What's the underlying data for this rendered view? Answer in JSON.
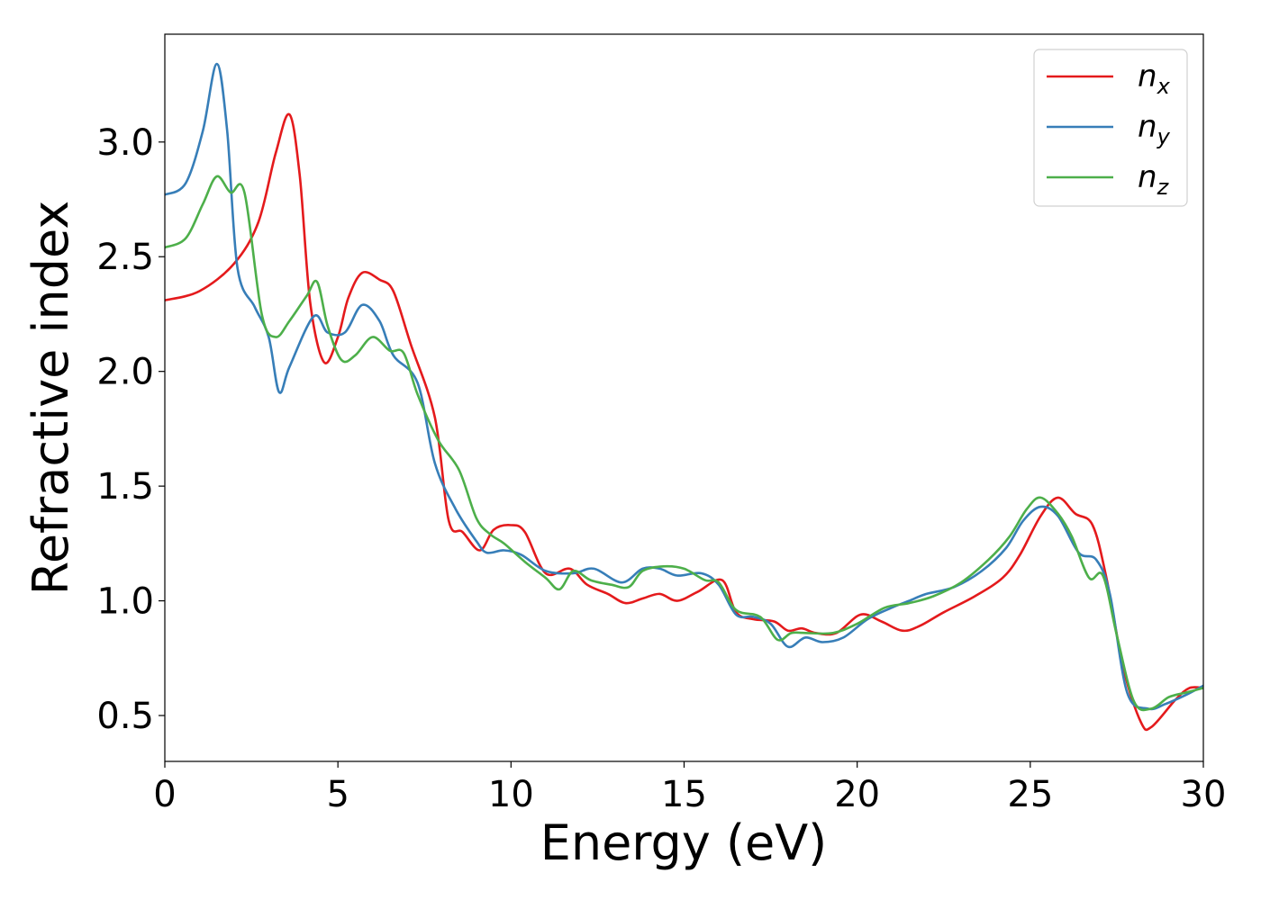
{
  "chart_data": {
    "type": "line",
    "xlabel": "Energy (eV)",
    "ylabel": "Refractive index",
    "xlim": [
      0,
      30
    ],
    "ylim": [
      0.3,
      3.47
    ],
    "x_ticks": [
      0,
      5,
      10,
      15,
      20,
      25,
      30
    ],
    "y_ticks": [
      0.5,
      1.0,
      1.5,
      2.0,
      2.5,
      3.0
    ],
    "x_tick_labels": [
      "0",
      "5",
      "10",
      "15",
      "20",
      "25",
      "30"
    ],
    "y_tick_labels": [
      "0.5",
      "1.0",
      "1.5",
      "2.0",
      "2.5",
      "3.0"
    ],
    "grid": false,
    "legend_position": "top-right",
    "series": [
      {
        "name": "n_x",
        "label_base": "n",
        "label_sub": "x",
        "color": "#e41a1c",
        "points": [
          [
            0,
            2.31
          ],
          [
            1,
            2.35
          ],
          [
            2,
            2.47
          ],
          [
            2.7,
            2.65
          ],
          [
            3.2,
            2.95
          ],
          [
            3.6,
            3.12
          ],
          [
            3.9,
            2.85
          ],
          [
            4.2,
            2.3
          ],
          [
            4.6,
            2.04
          ],
          [
            5,
            2.15
          ],
          [
            5.3,
            2.32
          ],
          [
            5.7,
            2.43
          ],
          [
            6.2,
            2.4
          ],
          [
            6.6,
            2.35
          ],
          [
            7.1,
            2.12
          ],
          [
            7.8,
            1.8
          ],
          [
            8.2,
            1.35
          ],
          [
            8.6,
            1.3
          ],
          [
            9.1,
            1.22
          ],
          [
            9.5,
            1.31
          ],
          [
            10,
            1.33
          ],
          [
            10.4,
            1.3
          ],
          [
            11,
            1.12
          ],
          [
            11.7,
            1.14
          ],
          [
            12.2,
            1.07
          ],
          [
            12.8,
            1.03
          ],
          [
            13.3,
            0.99
          ],
          [
            13.8,
            1.01
          ],
          [
            14.3,
            1.03
          ],
          [
            14.8,
            1.0
          ],
          [
            15.4,
            1.04
          ],
          [
            16.1,
            1.09
          ],
          [
            16.5,
            0.95
          ],
          [
            17,
            0.92
          ],
          [
            17.6,
            0.91
          ],
          [
            18,
            0.87
          ],
          [
            18.4,
            0.88
          ],
          [
            18.8,
            0.86
          ],
          [
            19.4,
            0.86
          ],
          [
            20.1,
            0.94
          ],
          [
            20.7,
            0.91
          ],
          [
            21.3,
            0.87
          ],
          [
            21.8,
            0.89
          ],
          [
            22.5,
            0.95
          ],
          [
            23.4,
            1.02
          ],
          [
            24.2,
            1.1
          ],
          [
            24.7,
            1.2
          ],
          [
            25.3,
            1.37
          ],
          [
            25.8,
            1.45
          ],
          [
            26.3,
            1.38
          ],
          [
            26.8,
            1.33
          ],
          [
            27.2,
            1.1
          ],
          [
            27.7,
            0.7
          ],
          [
            28.2,
            0.47
          ],
          [
            28.5,
            0.45
          ],
          [
            29.2,
            0.57
          ],
          [
            29.6,
            0.62
          ],
          [
            30,
            0.62
          ]
        ]
      },
      {
        "name": "n_y",
        "label_base": "n",
        "label_sub": "y",
        "color": "#377eb8",
        "points": [
          [
            0,
            2.77
          ],
          [
            0.6,
            2.82
          ],
          [
            1.1,
            3.05
          ],
          [
            1.5,
            3.34
          ],
          [
            1.8,
            3.05
          ],
          [
            2.1,
            2.45
          ],
          [
            2.6,
            2.28
          ],
          [
            3,
            2.15
          ],
          [
            3.3,
            1.91
          ],
          [
            3.6,
            2.02
          ],
          [
            4.3,
            2.24
          ],
          [
            4.7,
            2.17
          ],
          [
            5.2,
            2.17
          ],
          [
            5.7,
            2.29
          ],
          [
            6.2,
            2.22
          ],
          [
            6.6,
            2.07
          ],
          [
            7.3,
            1.95
          ],
          [
            7.8,
            1.6
          ],
          [
            8.4,
            1.4
          ],
          [
            9,
            1.26
          ],
          [
            9.3,
            1.21
          ],
          [
            9.8,
            1.22
          ],
          [
            10.3,
            1.2
          ],
          [
            11,
            1.13
          ],
          [
            11.8,
            1.12
          ],
          [
            12.4,
            1.14
          ],
          [
            13.2,
            1.08
          ],
          [
            13.8,
            1.14
          ],
          [
            14.3,
            1.14
          ],
          [
            14.8,
            1.11
          ],
          [
            15.5,
            1.12
          ],
          [
            16,
            1.07
          ],
          [
            16.5,
            0.94
          ],
          [
            17,
            0.93
          ],
          [
            17.5,
            0.9
          ],
          [
            18,
            0.8
          ],
          [
            18.5,
            0.84
          ],
          [
            19,
            0.82
          ],
          [
            19.6,
            0.84
          ],
          [
            20.3,
            0.92
          ],
          [
            21,
            0.97
          ],
          [
            21.5,
            1.0
          ],
          [
            22,
            1.03
          ],
          [
            22.8,
            1.06
          ],
          [
            23.6,
            1.13
          ],
          [
            24.3,
            1.23
          ],
          [
            24.8,
            1.35
          ],
          [
            25.3,
            1.41
          ],
          [
            25.8,
            1.37
          ],
          [
            26.4,
            1.21
          ],
          [
            26.9,
            1.18
          ],
          [
            27.3,
            1.03
          ],
          [
            27.8,
            0.6
          ],
          [
            28.4,
            0.53
          ],
          [
            28.9,
            0.55
          ],
          [
            29.5,
            0.59
          ],
          [
            30,
            0.63
          ]
        ]
      },
      {
        "name": "n_z",
        "label_base": "n",
        "label_sub": "z",
        "color": "#4daf4a",
        "points": [
          [
            0,
            2.54
          ],
          [
            0.6,
            2.58
          ],
          [
            1.1,
            2.73
          ],
          [
            1.5,
            2.85
          ],
          [
            1.9,
            2.78
          ],
          [
            2.3,
            2.78
          ],
          [
            2.8,
            2.25
          ],
          [
            3.2,
            2.15
          ],
          [
            3.6,
            2.22
          ],
          [
            4.1,
            2.33
          ],
          [
            4.4,
            2.39
          ],
          [
            4.7,
            2.2
          ],
          [
            5.1,
            2.05
          ],
          [
            5.5,
            2.07
          ],
          [
            6,
            2.15
          ],
          [
            6.5,
            2.09
          ],
          [
            6.9,
            2.08
          ],
          [
            7.3,
            1.9
          ],
          [
            7.9,
            1.7
          ],
          [
            8.5,
            1.57
          ],
          [
            9,
            1.36
          ],
          [
            9.4,
            1.29
          ],
          [
            9.8,
            1.25
          ],
          [
            10.4,
            1.17
          ],
          [
            11,
            1.1
          ],
          [
            11.4,
            1.05
          ],
          [
            11.8,
            1.13
          ],
          [
            12.3,
            1.09
          ],
          [
            12.9,
            1.07
          ],
          [
            13.4,
            1.06
          ],
          [
            13.8,
            1.13
          ],
          [
            14.4,
            1.15
          ],
          [
            15,
            1.14
          ],
          [
            15.6,
            1.09
          ],
          [
            16,
            1.08
          ],
          [
            16.5,
            0.96
          ],
          [
            17.2,
            0.93
          ],
          [
            17.7,
            0.83
          ],
          [
            18.1,
            0.86
          ],
          [
            18.5,
            0.86
          ],
          [
            19.3,
            0.86
          ],
          [
            20,
            0.9
          ],
          [
            20.8,
            0.97
          ],
          [
            21.5,
            0.99
          ],
          [
            22.2,
            1.02
          ],
          [
            23,
            1.08
          ],
          [
            23.8,
            1.18
          ],
          [
            24.4,
            1.28
          ],
          [
            24.9,
            1.4
          ],
          [
            25.3,
            1.45
          ],
          [
            25.8,
            1.38
          ],
          [
            26.2,
            1.28
          ],
          [
            26.7,
            1.1
          ],
          [
            27.1,
            1.11
          ],
          [
            27.5,
            0.85
          ],
          [
            28,
            0.56
          ],
          [
            28.5,
            0.53
          ],
          [
            29,
            0.58
          ],
          [
            29.5,
            0.6
          ],
          [
            30,
            0.62
          ]
        ]
      }
    ]
  }
}
